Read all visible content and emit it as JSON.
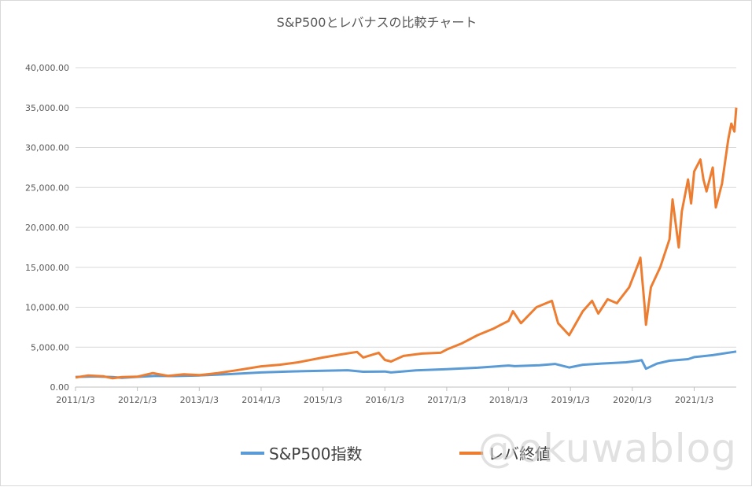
{
  "chart_data": {
    "type": "line",
    "title": "S&P500とレバナスの比較チャート",
    "xlabel": "",
    "ylabel": "",
    "ylim": [
      0,
      40000
    ],
    "yticks": [
      "0.00",
      "5,000.00",
      "10,000.00",
      "15,000.00",
      "20,000.00",
      "25,000.00",
      "30,000.00",
      "35,000.00",
      "40,000.00"
    ],
    "ytick_values": [
      0,
      5000,
      10000,
      15000,
      20000,
      25000,
      30000,
      35000,
      40000
    ],
    "xlim": [
      2011.0,
      2021.68
    ],
    "xticks": [
      "2011/1/3",
      "2012/1/3",
      "2013/1/3",
      "2014/1/3",
      "2015/1/3",
      "2016/1/3",
      "2017/1/3",
      "2018/1/3",
      "2019/1/3",
      "2020/1/3",
      "2021/1/3"
    ],
    "xtick_values": [
      2011.0,
      2012.0,
      2013.0,
      2014.0,
      2015.0,
      2016.0,
      2017.0,
      2018.0,
      2019.0,
      2020.0,
      2021.0
    ],
    "grid": "horizontal",
    "legend_position": "bottom",
    "series": [
      {
        "name": "S&P500指数",
        "color": "#5b9bd5",
        "x": [
          2011.0,
          2011.3,
          2011.6,
          2011.75,
          2012.0,
          2012.3,
          2012.6,
          2013.0,
          2013.5,
          2014.0,
          2014.5,
          2015.0,
          2015.4,
          2015.65,
          2016.0,
          2016.1,
          2016.5,
          2017.0,
          2017.5,
          2018.0,
          2018.1,
          2018.5,
          2018.75,
          2018.98,
          2019.2,
          2019.5,
          2019.9,
          2020.1,
          2020.15,
          2020.22,
          2020.4,
          2020.6,
          2020.9,
          2021.0,
          2021.3,
          2021.68
        ],
        "y": [
          1270,
          1330,
          1260,
          1150,
          1280,
          1400,
          1380,
          1460,
          1630,
          1830,
          1960,
          2050,
          2110,
          1920,
          1950,
          1830,
          2100,
          2250,
          2420,
          2700,
          2620,
          2730,
          2900,
          2450,
          2800,
          2950,
          3100,
          3300,
          3380,
          2300,
          2950,
          3300,
          3500,
          3750,
          4000,
          4450
        ]
      },
      {
        "name": "レバ終値",
        "color": "#ed7d31",
        "x": [
          2011.0,
          2011.2,
          2011.45,
          2011.6,
          2011.75,
          2012.0,
          2012.25,
          2012.5,
          2012.75,
          2013.0,
          2013.3,
          2013.6,
          2014.0,
          2014.3,
          2014.6,
          2015.0,
          2015.3,
          2015.55,
          2015.65,
          2015.9,
          2016.0,
          2016.1,
          2016.3,
          2016.6,
          2016.9,
          2017.0,
          2017.25,
          2017.5,
          2017.75,
          2018.0,
          2018.07,
          2018.2,
          2018.45,
          2018.7,
          2018.8,
          2018.98,
          2019.2,
          2019.35,
          2019.45,
          2019.6,
          2019.75,
          2019.95,
          2020.1,
          2020.13,
          2020.2,
          2020.22,
          2020.3,
          2020.45,
          2020.6,
          2020.65,
          2020.75,
          2020.8,
          2020.9,
          2020.95,
          2021.0,
          2021.1,
          2021.15,
          2021.2,
          2021.3,
          2021.35,
          2021.45,
          2021.55,
          2021.6,
          2021.65,
          2021.68
        ],
        "y": [
          1200,
          1450,
          1350,
          1100,
          1250,
          1300,
          1750,
          1400,
          1600,
          1500,
          1750,
          2100,
          2600,
          2800,
          3100,
          3700,
          4100,
          4400,
          3700,
          4300,
          3400,
          3200,
          3900,
          4200,
          4300,
          4700,
          5500,
          6500,
          7300,
          8300,
          9500,
          8000,
          10000,
          10800,
          8000,
          6500,
          9500,
          10800,
          9200,
          11000,
          10500,
          12500,
          15500,
          16200,
          10000,
          7800,
          12500,
          15000,
          18500,
          23500,
          17500,
          22000,
          26000,
          23000,
          27000,
          28500,
          26000,
          24500,
          27500,
          22500,
          25500,
          31000,
          33000,
          32000,
          35000
        ]
      }
    ]
  },
  "legend_items": [
    {
      "label": "S&P500指数",
      "color": "#5b9bd5"
    },
    {
      "label": "レバ終値",
      "color": "#ed7d31"
    }
  ],
  "watermark": "@okuwablog"
}
